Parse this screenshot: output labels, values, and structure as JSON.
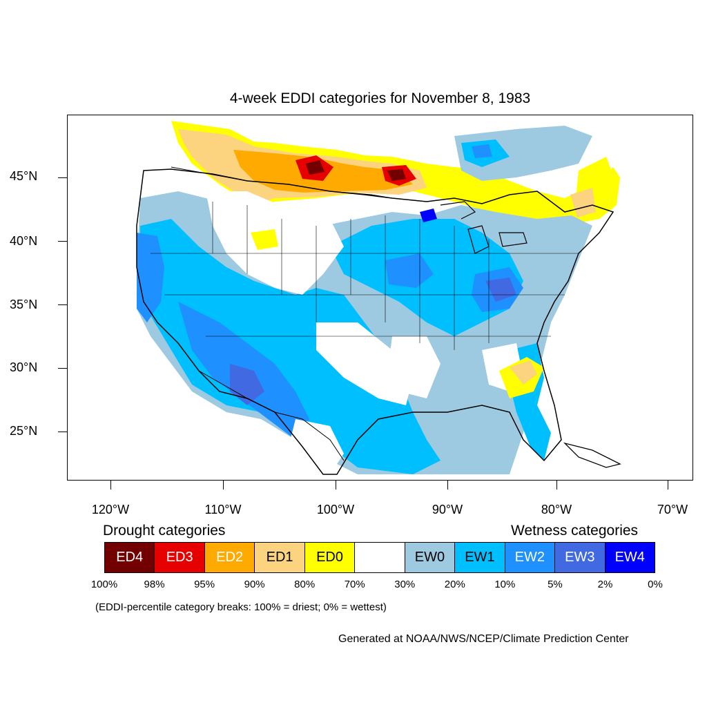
{
  "title": "4-week EDDI categories for November 8, 1983",
  "axes": {
    "lat_ticks": [
      "45°N",
      "40°N",
      "35°N",
      "30°N",
      "25°N"
    ],
    "lon_ticks": [
      "120°W",
      "110°W",
      "100°W",
      "90°W",
      "80°W",
      "70°W"
    ]
  },
  "legend": {
    "drought_heading": "Drought categories",
    "wetness_heading": "Wetness categories",
    "categories": [
      {
        "label": "ED4",
        "color": "#730000",
        "text_color": "#ffffff"
      },
      {
        "label": "ED3",
        "color": "#e60000",
        "text_color": "#ffffff"
      },
      {
        "label": "ED2",
        "color": "#ffaa00",
        "text_color": "#ffffff"
      },
      {
        "label": "ED1",
        "color": "#fcd37f",
        "text_color": "#000000"
      },
      {
        "label": "ED0",
        "color": "#ffff00",
        "text_color": "#000000"
      },
      {
        "label": "",
        "color": "#ffffff",
        "text_color": "#000000"
      },
      {
        "label": "EW0",
        "color": "#9ecae1",
        "text_color": "#000000"
      },
      {
        "label": "EW1",
        "color": "#00bfff",
        "text_color": "#000000"
      },
      {
        "label": "EW2",
        "color": "#1e90ff",
        "text_color": "#ffffff"
      },
      {
        "label": "EW3",
        "color": "#4169e1",
        "text_color": "#ffffff"
      },
      {
        "label": "EW4",
        "color": "#0000ff",
        "text_color": "#ffffff"
      }
    ],
    "breaks": [
      "100%",
      "98%",
      "95%",
      "90%",
      "80%",
      "70%",
      "30%",
      "20%",
      "10%",
      "5%",
      "2%",
      "0%"
    ]
  },
  "note": "(EDDI-percentile category breaks: 100% = driest; 0% = wettest)",
  "credit": "Generated at NOAA/NWS/NCEP/Climate Prediction Center"
}
